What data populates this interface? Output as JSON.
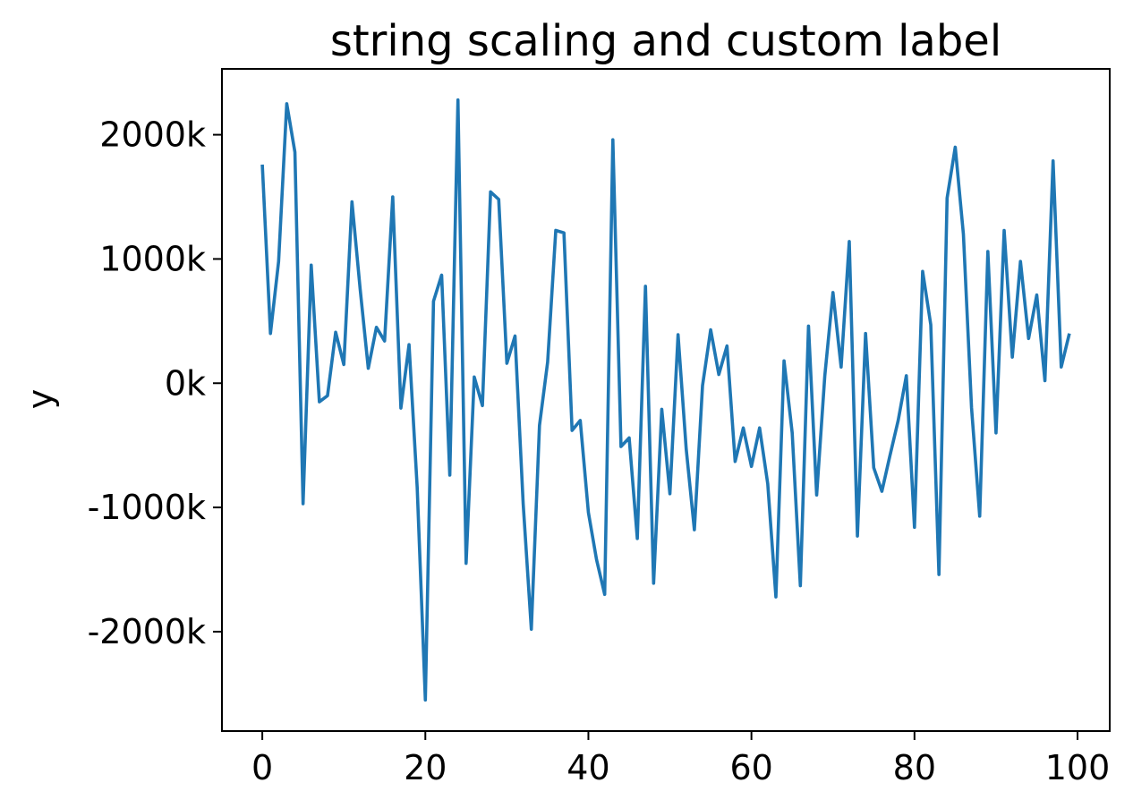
{
  "chart_data": {
    "type": "line",
    "title": "string scaling and custom label",
    "xlabel": "",
    "ylabel": "y",
    "xlim": [
      -4.95,
      103.95
    ],
    "ylim": [
      -2800,
      2530
    ],
    "xticks": [
      0,
      20,
      40,
      60,
      80,
      100
    ],
    "xtick_labels": [
      "0",
      "20",
      "40",
      "60",
      "80",
      "100"
    ],
    "yticks": [
      -2000,
      -1000,
      0,
      1000,
      2000
    ],
    "ytick_labels": [
      "-2000k",
      "-1000k",
      "0k",
      "1000k",
      "2000k"
    ],
    "grid": false,
    "legend": "none",
    "series": [
      {
        "color": "#1f77b4",
        "x": [
          0,
          1,
          2,
          3,
          4,
          5,
          6,
          7,
          8,
          9,
          10,
          11,
          12,
          13,
          14,
          15,
          16,
          17,
          18,
          19,
          20,
          21,
          22,
          23,
          24,
          25,
          26,
          27,
          28,
          29,
          30,
          31,
          32,
          33,
          34,
          35,
          36,
          37,
          38,
          39,
          40,
          41,
          42,
          43,
          44,
          45,
          46,
          47,
          48,
          49,
          50,
          51,
          52,
          53,
          54,
          55,
          56,
          57,
          58,
          59,
          60,
          61,
          62,
          63,
          64,
          65,
          66,
          67,
          68,
          69,
          70,
          71,
          72,
          73,
          74,
          75,
          76,
          77,
          78,
          79,
          80,
          81,
          82,
          83,
          84,
          85,
          86,
          87,
          88,
          89,
          90,
          91,
          92,
          93,
          94,
          95,
          96,
          97,
          98,
          99
        ],
        "y": [
          1760,
          400,
          980,
          2250,
          1860,
          -970,
          950,
          -150,
          -100,
          410,
          150,
          1460,
          760,
          120,
          450,
          340,
          1500,
          -200,
          310,
          -840,
          -2550,
          660,
          870,
          -740,
          2280,
          -1450,
          50,
          -180,
          1540,
          1480,
          160,
          380,
          -970,
          -1980,
          -340,
          170,
          1230,
          1210,
          -380,
          -300,
          -1040,
          -1420,
          -1700,
          1960,
          -510,
          -440,
          -1250,
          780,
          -1610,
          -210,
          -890,
          390,
          -530,
          -1180,
          -20,
          430,
          70,
          300,
          -630,
          -360,
          -670,
          -360,
          -810,
          -1720,
          180,
          -400,
          -1630,
          460,
          -900,
          60,
          730,
          130,
          1140,
          -1230,
          400,
          -680,
          -870,
          -580,
          -300,
          60,
          -1160,
          900,
          470,
          -1540,
          1490,
          1900,
          1200,
          -200,
          -1070,
          1060,
          -400,
          1230,
          210,
          980,
          360,
          710,
          20,
          1790,
          130,
          400
        ]
      }
    ]
  }
}
